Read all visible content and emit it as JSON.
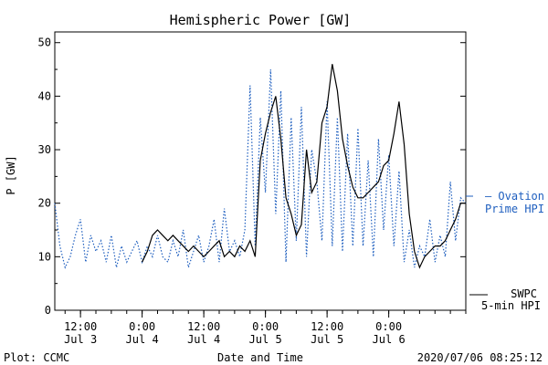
{
  "chart_data": {
    "type": "line",
    "title": "Hemispheric Power [GW]",
    "ylabel": "P [GW]",
    "xlabel": "Date and Time",
    "ylim": [
      0,
      52
    ],
    "xlim": [
      "2020-07-03T07:00",
      "2020-07-06T15:00"
    ],
    "yticks": [
      0,
      10,
      20,
      30,
      40,
      50
    ],
    "xticks": [
      {
        "x": "2020-07-03T12:00",
        "time": "12:00",
        "date": "Jul 3"
      },
      {
        "x": "2020-07-04T00:00",
        "time": "0:00",
        "date": "Jul 4"
      },
      {
        "x": "2020-07-04T12:00",
        "time": "12:00",
        "date": "Jul 4"
      },
      {
        "x": "2020-07-05T00:00",
        "time": "0:00",
        "date": "Jul 5"
      },
      {
        "x": "2020-07-05T12:00",
        "time": "12:00",
        "date": "Jul 5"
      },
      {
        "x": "2020-07-06T00:00",
        "time": "0:00",
        "date": "Jul 6"
      }
    ],
    "series": [
      {
        "name": "Ovation Prime HPI",
        "legend_lines": [
          "— Ovation",
          "Prime HPI"
        ],
        "color": "#1f5fbf",
        "style": "dotted",
        "x": [
          "2020-07-03T07:00",
          "2020-07-03T08:00",
          "2020-07-03T09:00",
          "2020-07-03T10:00",
          "2020-07-03T11:00",
          "2020-07-03T12:00",
          "2020-07-03T13:00",
          "2020-07-03T14:00",
          "2020-07-03T15:00",
          "2020-07-03T16:00",
          "2020-07-03T17:00",
          "2020-07-03T18:00",
          "2020-07-03T19:00",
          "2020-07-03T20:00",
          "2020-07-03T21:00",
          "2020-07-03T22:00",
          "2020-07-03T23:00",
          "2020-07-04T00:00",
          "2020-07-04T01:00",
          "2020-07-04T02:00",
          "2020-07-04T03:00",
          "2020-07-04T04:00",
          "2020-07-04T05:00",
          "2020-07-04T06:00",
          "2020-07-04T07:00",
          "2020-07-04T08:00",
          "2020-07-04T09:00",
          "2020-07-04T10:00",
          "2020-07-04T11:00",
          "2020-07-04T12:00",
          "2020-07-04T13:00",
          "2020-07-04T14:00",
          "2020-07-04T15:00",
          "2020-07-04T16:00",
          "2020-07-04T17:00",
          "2020-07-04T18:00",
          "2020-07-04T19:00",
          "2020-07-04T20:00",
          "2020-07-04T21:00",
          "2020-07-04T22:00",
          "2020-07-04T23:00",
          "2020-07-05T00:00",
          "2020-07-05T01:00",
          "2020-07-05T02:00",
          "2020-07-05T03:00",
          "2020-07-05T04:00",
          "2020-07-05T05:00",
          "2020-07-05T06:00",
          "2020-07-05T07:00",
          "2020-07-05T08:00",
          "2020-07-05T09:00",
          "2020-07-05T10:00",
          "2020-07-05T11:00",
          "2020-07-05T12:00",
          "2020-07-05T13:00",
          "2020-07-05T14:00",
          "2020-07-05T15:00",
          "2020-07-05T16:00",
          "2020-07-05T17:00",
          "2020-07-05T18:00",
          "2020-07-05T19:00",
          "2020-07-05T20:00",
          "2020-07-05T21:00",
          "2020-07-05T22:00",
          "2020-07-05T23:00",
          "2020-07-06T00:00",
          "2020-07-06T01:00",
          "2020-07-06T02:00",
          "2020-07-06T03:00",
          "2020-07-06T04:00",
          "2020-07-06T05:00",
          "2020-07-06T06:00",
          "2020-07-06T07:00",
          "2020-07-06T08:00",
          "2020-07-06T09:00",
          "2020-07-06T10:00",
          "2020-07-06T11:00",
          "2020-07-06T12:00",
          "2020-07-06T13:00",
          "2020-07-06T14:00",
          "2020-07-06T15:00"
        ],
        "values": [
          20,
          12,
          8,
          10,
          14,
          17,
          9,
          14,
          11,
          13,
          9,
          14,
          8,
          12,
          9,
          11,
          13,
          9,
          12,
          10,
          14,
          10,
          9,
          13,
          10,
          15,
          8,
          11,
          14,
          9,
          12,
          17,
          9,
          19,
          11,
          13,
          10,
          15,
          42,
          12,
          36,
          22,
          45,
          18,
          41,
          9,
          36,
          13,
          38,
          10,
          30,
          24,
          13,
          39,
          12,
          36,
          11,
          33,
          12,
          34,
          12,
          28,
          10,
          32,
          15,
          29,
          12,
          26,
          9,
          15,
          8,
          12,
          10,
          17,
          9,
          14,
          10,
          24,
          13,
          21,
          20
        ]
      },
      {
        "name": "SWPC 5-min HPI",
        "legend_lines": [
          "SWPC",
          "5-min HPI"
        ],
        "color": "#000000",
        "style": "solid",
        "x": [
          "2020-07-04T00:00",
          "2020-07-04T01:00",
          "2020-07-04T02:00",
          "2020-07-04T03:00",
          "2020-07-04T04:00",
          "2020-07-04T05:00",
          "2020-07-04T06:00",
          "2020-07-04T07:00",
          "2020-07-04T08:00",
          "2020-07-04T09:00",
          "2020-07-04T10:00",
          "2020-07-04T11:00",
          "2020-07-04T12:00",
          "2020-07-04T13:00",
          "2020-07-04T14:00",
          "2020-07-04T15:00",
          "2020-07-04T16:00",
          "2020-07-04T17:00",
          "2020-07-04T18:00",
          "2020-07-04T19:00",
          "2020-07-04T20:00",
          "2020-07-04T21:00",
          "2020-07-04T22:00",
          "2020-07-04T23:00",
          "2020-07-05T00:00",
          "2020-07-05T01:00",
          "2020-07-05T02:00",
          "2020-07-05T03:00",
          "2020-07-05T04:00",
          "2020-07-05T05:00",
          "2020-07-05T06:00",
          "2020-07-05T07:00",
          "2020-07-05T08:00",
          "2020-07-05T09:00",
          "2020-07-05T10:00",
          "2020-07-05T11:00",
          "2020-07-05T12:00",
          "2020-07-05T13:00",
          "2020-07-05T14:00",
          "2020-07-05T15:00",
          "2020-07-05T16:00",
          "2020-07-05T17:00",
          "2020-07-05T18:00",
          "2020-07-05T19:00",
          "2020-07-05T20:00",
          "2020-07-05T21:00",
          "2020-07-05T22:00",
          "2020-07-05T23:00",
          "2020-07-06T00:00",
          "2020-07-06T01:00",
          "2020-07-06T02:00",
          "2020-07-06T03:00",
          "2020-07-06T04:00",
          "2020-07-06T05:00",
          "2020-07-06T06:00",
          "2020-07-06T07:00",
          "2020-07-06T08:00",
          "2020-07-06T09:00",
          "2020-07-06T10:00",
          "2020-07-06T11:00",
          "2020-07-06T12:00",
          "2020-07-06T13:00",
          "2020-07-06T14:00",
          "2020-07-06T15:00"
        ],
        "values": [
          9,
          11,
          14,
          15,
          14,
          13,
          14,
          13,
          12,
          11,
          12,
          11,
          10,
          11,
          12,
          13,
          10,
          11,
          10,
          12,
          11,
          13,
          10,
          28,
          33,
          37,
          40,
          32,
          21,
          18,
          14,
          16,
          30,
          22,
          24,
          35,
          38,
          46,
          41,
          32,
          27,
          23,
          21,
          21,
          22,
          23,
          24,
          27,
          28,
          33,
          39,
          31,
          18,
          11,
          8,
          10,
          11,
          12,
          12,
          13,
          15,
          17,
          20,
          20
        ]
      }
    ],
    "annotations": {
      "plot_credit": "Plot: CCMC",
      "timestamp": "2020/07/06 08:25:12"
    }
  }
}
